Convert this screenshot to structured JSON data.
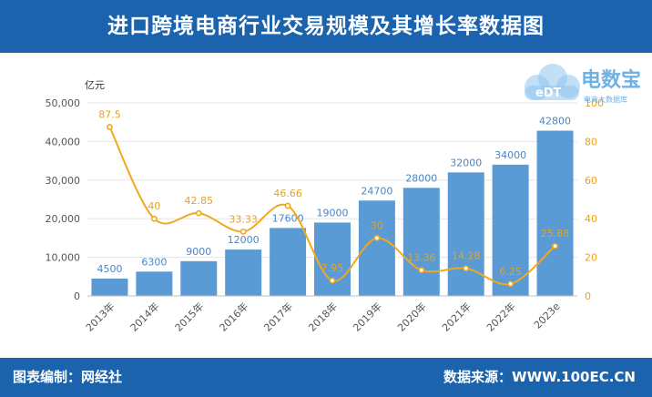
{
  "header": {
    "title": "进口跨境电商行业交易规模及其增长率数据图"
  },
  "footer": {
    "left": "图表编制：网经社",
    "right": "数据来源：WWW.100EC.CN"
  },
  "logo": {
    "mark": "eDT",
    "name": "电数宝",
    "tagline": "电商大数据库"
  },
  "colors": {
    "bar": "#5b9bd5",
    "line": "#f0a91c",
    "header": "#1b64ad"
  },
  "chart_data": {
    "type": "bar",
    "categories": [
      "2013年",
      "2014年",
      "2015年",
      "2016年",
      "2017年",
      "2018年",
      "2019年",
      "2020年",
      "2021年",
      "2022年",
      "2023e"
    ],
    "ylabel": "亿元",
    "ylim": [
      0,
      50000
    ],
    "yticks": [
      "0",
      "10,000",
      "20,000",
      "30,000",
      "40,000",
      "50,000"
    ],
    "y2lim": [
      0,
      100
    ],
    "y2ticks": [
      "0",
      "20",
      "40",
      "60",
      "80",
      "100"
    ],
    "series": [
      {
        "type": "bar",
        "values": [
          4500,
          6300,
          9000,
          12000,
          17600,
          19000,
          24700,
          28000,
          32000,
          34000,
          42800
        ],
        "labels": [
          "4500",
          "6300",
          "9000",
          "12000",
          "17600",
          "19000",
          "24700",
          "28000",
          "32000",
          "34000",
          "42800"
        ]
      },
      {
        "type": "line",
        "axis": "right",
        "values": [
          87.5,
          40,
          42.85,
          33.33,
          46.66,
          7.95,
          30,
          13.36,
          14.28,
          6.25,
          25.88
        ],
        "labels": [
          "87.5",
          "40",
          "42.85",
          "33.33",
          "46.66",
          "7.95",
          "30",
          "13.36",
          "14.28",
          "6.25",
          "25.88"
        ]
      }
    ],
    "grid": true
  }
}
